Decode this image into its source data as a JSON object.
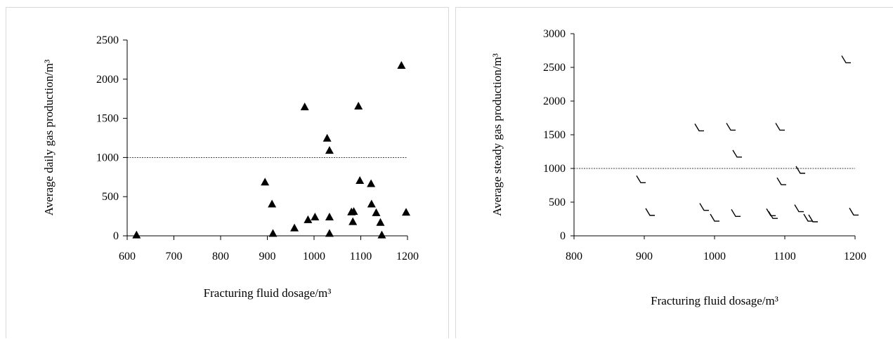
{
  "charts": [
    {
      "type": "scatter",
      "xlabel": "Fracturing fluid dosage/m³",
      "ylabel": "Average daily gas production/m³",
      "xlim": [
        600,
        1200
      ],
      "ylim": [
        0,
        2500
      ],
      "xticks": [
        600,
        700,
        800,
        900,
        1000,
        1100,
        1200
      ],
      "yticks": [
        0,
        500,
        1000,
        1500,
        2000,
        2500
      ],
      "reference_line_y": 1000,
      "marker": "filled-triangle",
      "points": [
        [
          620,
          5
        ],
        [
          895,
          680
        ],
        [
          910,
          400
        ],
        [
          912,
          25
        ],
        [
          958,
          95
        ],
        [
          980,
          1640
        ],
        [
          987,
          200
        ],
        [
          1002,
          235
        ],
        [
          1028,
          1240
        ],
        [
          1033,
          1085
        ],
        [
          1033,
          235
        ],
        [
          1033,
          25
        ],
        [
          1080,
          300
        ],
        [
          1083,
          175
        ],
        [
          1085,
          305
        ],
        [
          1095,
          1650
        ],
        [
          1098,
          700
        ],
        [
          1122,
          660
        ],
        [
          1123,
          400
        ],
        [
          1133,
          290
        ],
        [
          1142,
          165
        ],
        [
          1145,
          5
        ],
        [
          1187,
          2170
        ],
        [
          1197,
          295
        ]
      ]
    },
    {
      "type": "scatter",
      "xlabel": "Fracturing fluid dosage/m³",
      "ylabel": "Average steady gas production/m³",
      "xlim": [
        800,
        1200
      ],
      "ylim": [
        0,
        3000
      ],
      "xticks": [
        800,
        900,
        1000,
        1100,
        1200
      ],
      "yticks": [
        0,
        500,
        1000,
        1500,
        2000,
        2500,
        3000
      ],
      "reference_line_y": 1000,
      "marker": "open-angle",
      "points": [
        [
          895,
          830
        ],
        [
          908,
          345
        ],
        [
          978,
          1600
        ],
        [
          985,
          420
        ],
        [
          1000,
          260
        ],
        [
          1023,
          1610
        ],
        [
          1030,
          330
        ],
        [
          1032,
          1210
        ],
        [
          1080,
          340
        ],
        [
          1083,
          300
        ],
        [
          1093,
          1610
        ],
        [
          1095,
          800
        ],
        [
          1120,
          400
        ],
        [
          1122,
          970
        ],
        [
          1133,
          260
        ],
        [
          1140,
          250
        ],
        [
          1187,
          2610
        ],
        [
          1198,
          350
        ]
      ]
    }
  ]
}
